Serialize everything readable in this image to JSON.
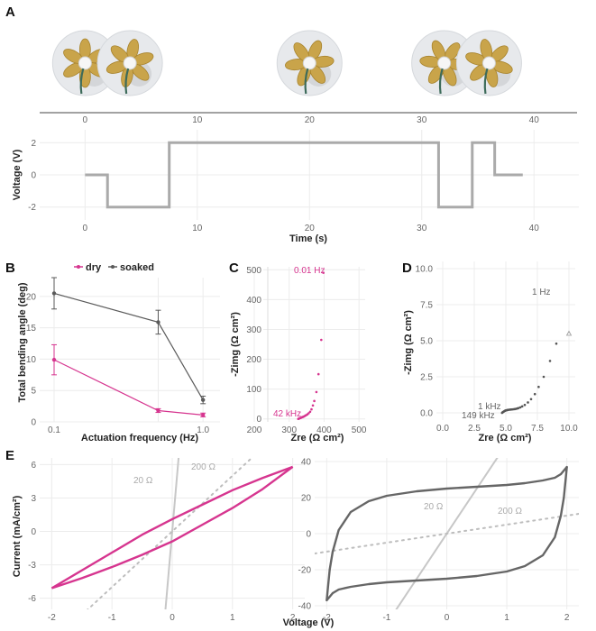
{
  "colors": {
    "pink": "#d6358f",
    "dark": "#5a5a5a",
    "gray": "#aaaaaa",
    "lightgray": "#bbbbbb"
  },
  "panels": {
    "A_label": "A",
    "B_label": "B",
    "C_label": "C",
    "D_label": "D",
    "E_label": "E"
  },
  "chart_data": [
    {
      "id": "A_photos",
      "type": "image-timeline",
      "photo_times": [
        0,
        4,
        20,
        32,
        36
      ],
      "x_ticks": [
        "0",
        "10",
        "20",
        "30",
        "40"
      ],
      "xlim": [
        -3,
        44
      ]
    },
    {
      "id": "A",
      "type": "line",
      "title": "",
      "xlabel": "Time (s)",
      "ylabel": "Voltage (V)",
      "xlim": [
        -3,
        44
      ],
      "ylim": [
        -2.8,
        2.8
      ],
      "x_ticks": [
        "0",
        "10",
        "20",
        "30",
        "40"
      ],
      "y_ticks": [
        "-2",
        "0",
        "2"
      ],
      "x_tick_values": [
        0,
        10,
        20,
        30,
        40
      ],
      "y_tick_values": [
        -2,
        0,
        2
      ],
      "series": [
        {
          "x": [
            0,
            2,
            2,
            3.5,
            3.5,
            7.5,
            7.5,
            31.5,
            31.5,
            34.5,
            34.5,
            36.5,
            36.5,
            39
          ],
          "y": [
            0,
            0,
            -2,
            -2,
            -2,
            -2,
            2,
            2,
            -2,
            -2,
            2,
            2,
            0,
            0
          ]
        }
      ]
    },
    {
      "id": "B",
      "type": "line",
      "xlabel": "Actuation frequency (Hz)",
      "ylabel": "Total bending angle (deg)",
      "xscale": "log",
      "xlim": [
        0.08,
        1.3
      ],
      "ylim": [
        0,
        23
      ],
      "x_ticks": [
        "0.1",
        "1.0"
      ],
      "x_tick_values": [
        0.1,
        1.0
      ],
      "y_ticks": [
        "0",
        "5",
        "10",
        "15",
        "20"
      ],
      "y_tick_values": [
        0,
        5,
        10,
        15,
        20
      ],
      "legend": "top",
      "series": [
        {
          "name": "dry",
          "x": [
            0.1,
            0.5,
            1.0
          ],
          "y": [
            9.9,
            1.8,
            1.1
          ],
          "err": [
            2.4,
            0.3,
            0.3
          ]
        },
        {
          "name": "soaked",
          "x": [
            0.1,
            0.5,
            1.0
          ],
          "y": [
            20.5,
            15.9,
            3.5
          ],
          "err": [
            2.5,
            1.9,
            0.6
          ]
        }
      ]
    },
    {
      "id": "C",
      "type": "scatter",
      "xlabel": "Zre (Ω cm²)",
      "ylabel": "-Zimg (Ω cm²)",
      "xlim": [
        200,
        510
      ],
      "ylim": [
        -10,
        510
      ],
      "x_ticks": [
        "200",
        "300",
        "400",
        "500"
      ],
      "x_tick_values": [
        200,
        300,
        400,
        500
      ],
      "y_ticks": [
        "0",
        "100",
        "200",
        "300",
        "400",
        "500"
      ],
      "y_tick_values": [
        0,
        100,
        200,
        300,
        400,
        500
      ],
      "annotations": [
        "0.01  Hz",
        "42 kHz"
      ],
      "series": [
        {
          "x": [
            326,
            328,
            330,
            332,
            334,
            336,
            338,
            340,
            342,
            345,
            348,
            352,
            356,
            360,
            364,
            368,
            372,
            378,
            384,
            392,
            398
          ],
          "y": [
            0,
            1,
            2,
            3,
            4,
            5,
            6,
            7,
            8,
            10,
            12,
            15,
            19,
            24,
            32,
            45,
            60,
            90,
            150,
            265,
            490
          ]
        }
      ]
    },
    {
      "id": "D",
      "type": "scatter",
      "xlabel": "Zre (Ω cm²)",
      "ylabel": "-Zimg (Ω cm²)",
      "xlim": [
        -0.5,
        10.5
      ],
      "ylim": [
        -0.5,
        10.5
      ],
      "x_ticks": [
        "0.0",
        "2.5",
        "5.0",
        "7.5",
        "10.0"
      ],
      "x_tick_values": [
        0,
        2.5,
        5,
        7.5,
        10
      ],
      "y_ticks": [
        "0.0",
        "2.5",
        "5.0",
        "7.5",
        "10.0"
      ],
      "y_tick_values": [
        0,
        2.5,
        5,
        7.5,
        10
      ],
      "annotations": [
        "1  Hz",
        "1 kHz",
        "149 kHz"
      ],
      "series": [
        {
          "x": [
            4.7,
            4.75,
            4.8,
            4.85,
            4.9,
            4.95,
            5.0,
            5.05,
            5.1,
            5.15,
            5.2,
            5.3,
            5.4,
            5.5,
            5.6,
            5.7,
            5.8,
            5.9,
            6.0,
            6.15,
            6.3,
            6.5,
            6.75,
            7.0,
            7.3,
            7.6,
            8.0,
            8.5,
            9.0
          ],
          "y": [
            0.0,
            0.04,
            0.07,
            0.1,
            0.13,
            0.15,
            0.17,
            0.18,
            0.19,
            0.2,
            0.21,
            0.22,
            0.23,
            0.24,
            0.25,
            0.26,
            0.28,
            0.3,
            0.33,
            0.38,
            0.45,
            0.55,
            0.72,
            0.95,
            1.3,
            1.8,
            2.5,
            3.6,
            4.8
          ]
        },
        {
          "x": [
            10.0
          ],
          "y": [
            5.5
          ]
        }
      ]
    },
    {
      "id": "E_left",
      "type": "line",
      "xlabel": "Voltage (V)",
      "ylabel": "Current (mA/cm²)",
      "xlim": [
        -2.2,
        2.2
      ],
      "ylim": [
        -7.0,
        6.6
      ],
      "x_ticks": [
        "-2",
        "-1",
        "0",
        "1",
        "2"
      ],
      "x_tick_values": [
        -2,
        -1,
        0,
        1,
        2
      ],
      "y_ticks": [
        "-6",
        "-3",
        "0",
        "3",
        "6"
      ],
      "y_tick_values": [
        -6,
        -3,
        0,
        3,
        6
      ],
      "annotations": [
        "20 Ω",
        "200 Ω"
      ],
      "series": [
        {
          "name": "upper",
          "x": [
            -2,
            -1.5,
            -1,
            -0.5,
            0,
            0.5,
            1,
            1.5,
            2
          ],
          "y": [
            -5.1,
            -3.5,
            -1.9,
            -0.3,
            1.1,
            2.4,
            3.7,
            4.8,
            5.8
          ]
        },
        {
          "name": "lower",
          "x": [
            -2,
            -1.5,
            -1,
            -0.5,
            0,
            0.5,
            1,
            1.5,
            2
          ],
          "y": [
            -5.1,
            -4.2,
            -3.2,
            -2.1,
            -0.9,
            0.6,
            2.1,
            3.8,
            5.8
          ]
        }
      ]
    },
    {
      "id": "E_right",
      "type": "line",
      "xlabel": "",
      "ylabel": "",
      "xlim": [
        -2.2,
        2.2
      ],
      "ylim": [
        -42,
        42
      ],
      "x_ticks": [
        "-2",
        "-1",
        "0",
        "1",
        "2"
      ],
      "x_tick_values": [
        -2,
        -1,
        0,
        1,
        2
      ],
      "y_ticks": [
        "-40",
        "-20",
        "0",
        "20",
        "40"
      ],
      "y_tick_values": [
        -40,
        -20,
        0,
        20,
        40
      ],
      "annotations": [
        "20 Ω",
        "200 Ω"
      ],
      "series": [
        {
          "name": "upper",
          "x": [
            -2,
            -1.95,
            -1.9,
            -1.8,
            -1.6,
            -1.3,
            -1.0,
            -0.5,
            0,
            0.5,
            1.0,
            1.3,
            1.6,
            1.8,
            1.9,
            1.95,
            2.0
          ],
          "y": [
            -37,
            -20,
            -10,
            2,
            12,
            18,
            21,
            23.5,
            25,
            26,
            27,
            28,
            29.5,
            31,
            33,
            35,
            37
          ]
        },
        {
          "name": "lower",
          "x": [
            -2,
            -1.95,
            -1.9,
            -1.8,
            -1.6,
            -1.3,
            -1.0,
            -0.5,
            0,
            0.5,
            1.0,
            1.3,
            1.6,
            1.8,
            1.9,
            1.95,
            2.0
          ],
          "y": [
            -37,
            -35,
            -33,
            -31,
            -29.5,
            -28,
            -27,
            -26,
            -25,
            -23.5,
            -21,
            -18,
            -12,
            -2,
            10,
            20,
            37
          ]
        }
      ]
    }
  ]
}
